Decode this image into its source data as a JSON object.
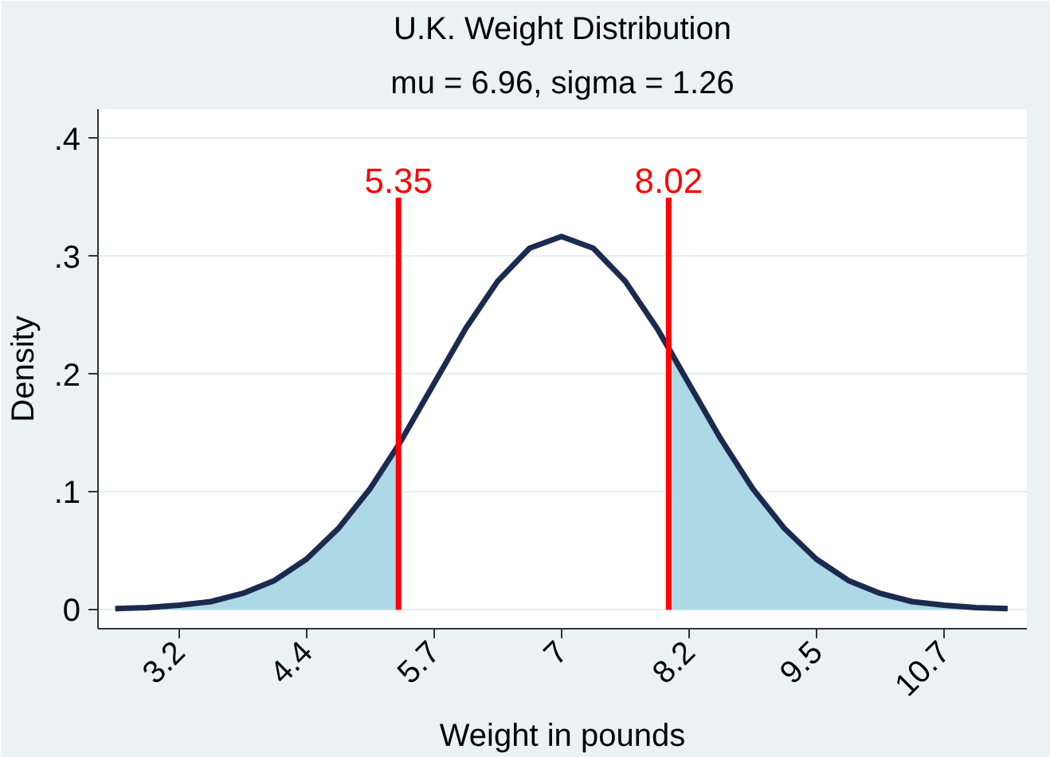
{
  "chart_data": {
    "type": "line",
    "title": "U.K. Weight Distribution",
    "subtitle": "mu = 6.96, sigma = 1.26",
    "xlabel": "Weight in pounds",
    "ylabel": "Density",
    "xlim": [
      2.38,
      11.56
    ],
    "ylim": [
      -0.016,
      0.425
    ],
    "xticks": [
      {
        "value": 3.18,
        "label": "3.2"
      },
      {
        "value": 4.44,
        "label": "4.4"
      },
      {
        "value": 5.7,
        "label": "5.7"
      },
      {
        "value": 6.96,
        "label": "7"
      },
      {
        "value": 8.22,
        "label": "8.2"
      },
      {
        "value": 9.48,
        "label": "9.5"
      },
      {
        "value": 10.74,
        "label": "10.7"
      }
    ],
    "yticks": [
      0,
      {
        "value": 0.1,
        "label": ".1"
      },
      {
        "value": 0.2,
        "label": ".2"
      },
      {
        "value": 0.3,
        "label": ".3"
      },
      {
        "value": 0.4,
        "label": ".4"
      }
    ],
    "grid": "y",
    "series": [
      {
        "type": "area",
        "color": "#add8e6",
        "x": [
          2.55,
          2.865,
          3.18,
          3.495,
          3.81,
          4.125,
          4.44,
          4.755,
          5.07,
          5.35
        ],
        "values": [
          0.001,
          0.002,
          0.004,
          0.007,
          0.014,
          0.025,
          0.043,
          0.069,
          0.103,
          0.14
        ]
      },
      {
        "type": "area",
        "color": "#add8e6",
        "x": [
          8.02,
          8.22,
          8.535,
          8.85,
          9.165,
          9.48,
          9.795,
          10.11,
          10.425,
          10.74,
          11.055,
          11.37
        ],
        "values": [
          0.222,
          0.192,
          0.145,
          0.103,
          0.069,
          0.043,
          0.025,
          0.014,
          0.007,
          0.004,
          0.002,
          0.001
        ]
      },
      {
        "color": "#1c2a4f",
        "x": [
          2.55,
          2.865,
          3.18,
          3.495,
          3.81,
          4.125,
          4.44,
          4.755,
          5.07,
          5.35,
          5.385,
          5.7,
          6.015,
          6.33,
          6.645,
          6.96,
          7.275,
          7.59,
          7.905,
          8.02,
          8.22,
          8.535,
          8.85,
          9.165,
          9.48,
          9.795,
          10.11,
          10.425,
          10.74,
          11.055,
          11.37
        ],
        "values": [
          0.001,
          0.002,
          0.004,
          0.007,
          0.014,
          0.025,
          0.043,
          0.069,
          0.103,
          0.14,
          0.145,
          0.192,
          0.239,
          0.279,
          0.307,
          0.317,
          0.307,
          0.279,
          0.239,
          0.222,
          0.192,
          0.145,
          0.103,
          0.069,
          0.043,
          0.025,
          0.014,
          0.007,
          0.004,
          0.002,
          0.001
        ]
      },
      {
        "color": "#ff0000",
        "x": [
          5.35,
          5.35
        ],
        "values": [
          0,
          0.35
        ]
      },
      {
        "color": "#ff0000",
        "x": [
          8.02,
          8.02
        ],
        "values": [
          0,
          0.35
        ]
      }
    ],
    "annotations": [
      {
        "text": "5.35",
        "x": 5.35,
        "y": 0.35
      },
      {
        "text": "8.02",
        "x": 8.02,
        "y": 0.35
      }
    ]
  }
}
